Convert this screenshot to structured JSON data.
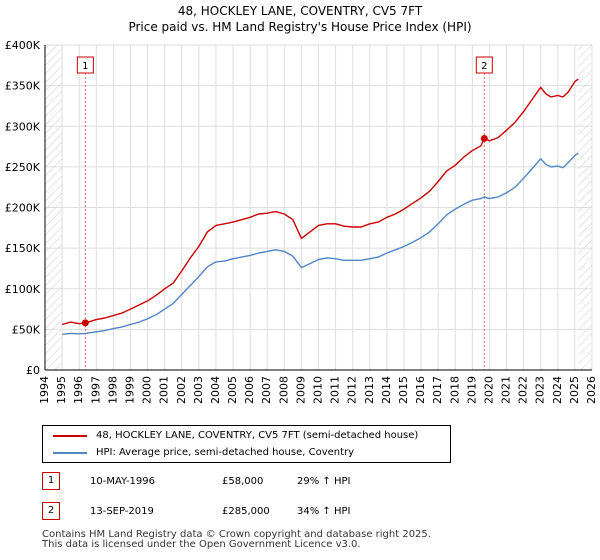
{
  "chart_data": {
    "type": "line",
    "title": "48, HOCKLEY LANE, COVENTRY, CV5 7FT",
    "subtitle": "Price paid vs. HM Land Registry's House Price Index (HPI)",
    "xlim": [
      1994,
      2026
    ],
    "ylim": [
      0,
      400000
    ],
    "x_ticks": [
      "1994",
      "1995",
      "1996",
      "1997",
      "1998",
      "1999",
      "2000",
      "2001",
      "2002",
      "2003",
      "2004",
      "2005",
      "2006",
      "2007",
      "2008",
      "2009",
      "2010",
      "2011",
      "2012",
      "2013",
      "2014",
      "2015",
      "2016",
      "2017",
      "2018",
      "2019",
      "2020",
      "2021",
      "2022",
      "2023",
      "2024",
      "2025",
      "2026"
    ],
    "y_ticks": [
      {
        "value": 0,
        "label": "£0"
      },
      {
        "value": 50000,
        "label": "£50K"
      },
      {
        "value": 100000,
        "label": "£100K"
      },
      {
        "value": 150000,
        "label": "£150K"
      },
      {
        "value": 200000,
        "label": "£200K"
      },
      {
        "value": 250000,
        "label": "£250K"
      },
      {
        "value": 300000,
        "label": "£300K"
      },
      {
        "value": 350000,
        "label": "£350K"
      },
      {
        "value": 400000,
        "label": "£400K"
      }
    ],
    "grid": true,
    "hatched_regions": [
      [
        1994,
        1995
      ],
      [
        2025.2,
        2026
      ]
    ],
    "series": [
      {
        "name": "48, HOCKLEY LANE, COVENTRY, CV5 7FT (semi-detached house)",
        "color": "#cc0000",
        "x": [
          1995.0,
          1995.5,
          1996.0,
          1996.36,
          1997.0,
          1997.5,
          1998.0,
          1998.5,
          1999.0,
          1999.5,
          2000.0,
          2000.5,
          2001.0,
          2001.5,
          2002.0,
          2002.5,
          2003.0,
          2003.5,
          2004.0,
          2004.5,
          2005.0,
          2005.5,
          2006.0,
          2006.5,
          2007.0,
          2007.5,
          2008.0,
          2008.5,
          2009.0,
          2009.5,
          2010.0,
          2010.5,
          2011.0,
          2011.5,
          2012.0,
          2012.5,
          2013.0,
          2013.5,
          2014.0,
          2014.5,
          2015.0,
          2015.5,
          2016.0,
          2016.5,
          2017.0,
          2017.5,
          2018.0,
          2018.5,
          2019.0,
          2019.5,
          2019.7,
          2020.0,
          2020.5,
          2021.0,
          2021.5,
          2022.0,
          2022.5,
          2023.0,
          2023.3,
          2023.6,
          2024.0,
          2024.3,
          2024.6,
          2025.0,
          2025.2
        ],
        "values": [
          56000,
          59000,
          57000,
          58000,
          62000,
          64000,
          67000,
          70000,
          75000,
          80000,
          85000,
          92000,
          100000,
          107000,
          122000,
          138000,
          152000,
          170000,
          178000,
          180000,
          182000,
          185000,
          188000,
          192000,
          193000,
          195000,
          192000,
          185000,
          162000,
          170000,
          178000,
          180000,
          180000,
          177000,
          176000,
          176000,
          180000,
          182000,
          188000,
          192000,
          198000,
          205000,
          212000,
          220000,
          232000,
          245000,
          252000,
          262000,
          270000,
          276000,
          285000,
          282000,
          286000,
          295000,
          305000,
          318000,
          333000,
          348000,
          340000,
          336000,
          338000,
          336000,
          342000,
          355000,
          358000
        ]
      },
      {
        "name": "HPI: Average price, semi-detached house, Coventry",
        "color": "#4f86c6",
        "x": [
          1995.0,
          1995.5,
          1996.0,
          1996.36,
          1997.0,
          1997.5,
          1998.0,
          1998.5,
          1999.0,
          1999.5,
          2000.0,
          2000.5,
          2001.0,
          2001.5,
          2002.0,
          2002.5,
          2003.0,
          2003.5,
          2004.0,
          2004.5,
          2005.0,
          2005.5,
          2006.0,
          2006.5,
          2007.0,
          2007.5,
          2008.0,
          2008.5,
          2009.0,
          2009.5,
          2010.0,
          2010.5,
          2011.0,
          2011.5,
          2012.0,
          2012.5,
          2013.0,
          2013.5,
          2014.0,
          2014.5,
          2015.0,
          2015.5,
          2016.0,
          2016.5,
          2017.0,
          2017.5,
          2018.0,
          2018.5,
          2019.0,
          2019.5,
          2019.7,
          2020.0,
          2020.5,
          2021.0,
          2021.5,
          2022.0,
          2022.5,
          2023.0,
          2023.3,
          2023.6,
          2024.0,
          2024.3,
          2024.6,
          2025.0,
          2025.2
        ],
        "values": [
          44000,
          45000,
          44500,
          45000,
          47000,
          48500,
          51000,
          53000,
          56000,
          59000,
          63000,
          68000,
          75000,
          82000,
          93000,
          104000,
          115000,
          127000,
          133000,
          134000,
          137000,
          139000,
          141000,
          144000,
          146000,
          148000,
          146000,
          140000,
          126000,
          131000,
          136000,
          138000,
          137000,
          135000,
          135000,
          135000,
          137000,
          139000,
          144000,
          148000,
          152000,
          157000,
          163000,
          170000,
          180000,
          191000,
          198000,
          204000,
          209000,
          211000,
          213000,
          211000,
          213000,
          218000,
          225000,
          236000,
          248000,
          260000,
          253000,
          250000,
          251000,
          249000,
          255000,
          264000,
          267000
        ]
      }
    ],
    "annotations": [
      {
        "label": "1",
        "x": 1996.36,
        "value": 58000
      },
      {
        "label": "2",
        "x": 2019.7,
        "value": 285000
      }
    ]
  },
  "legend": {
    "property_label": "48, HOCKLEY LANE, COVENTRY, CV5 7FT (semi-detached house)",
    "hpi_label": "HPI: Average price, semi-detached house, Coventry"
  },
  "sales": [
    {
      "num": "1",
      "date": "10-MAY-1996",
      "price": "£58,000",
      "hpi_change": "29% ↑ HPI"
    },
    {
      "num": "2",
      "date": "13-SEP-2019",
      "price": "£285,000",
      "hpi_change": "34% ↑ HPI"
    }
  ],
  "footer": {
    "line1": "Contains HM Land Registry data © Crown copyright and database right 2025.",
    "line2": "This data is licensed under the Open Government Licence v3.0."
  },
  "colors": {
    "property": "#cc0000",
    "hpi": "#4f86c6",
    "grid": "#dddddd",
    "hatch": "#cccccc"
  }
}
